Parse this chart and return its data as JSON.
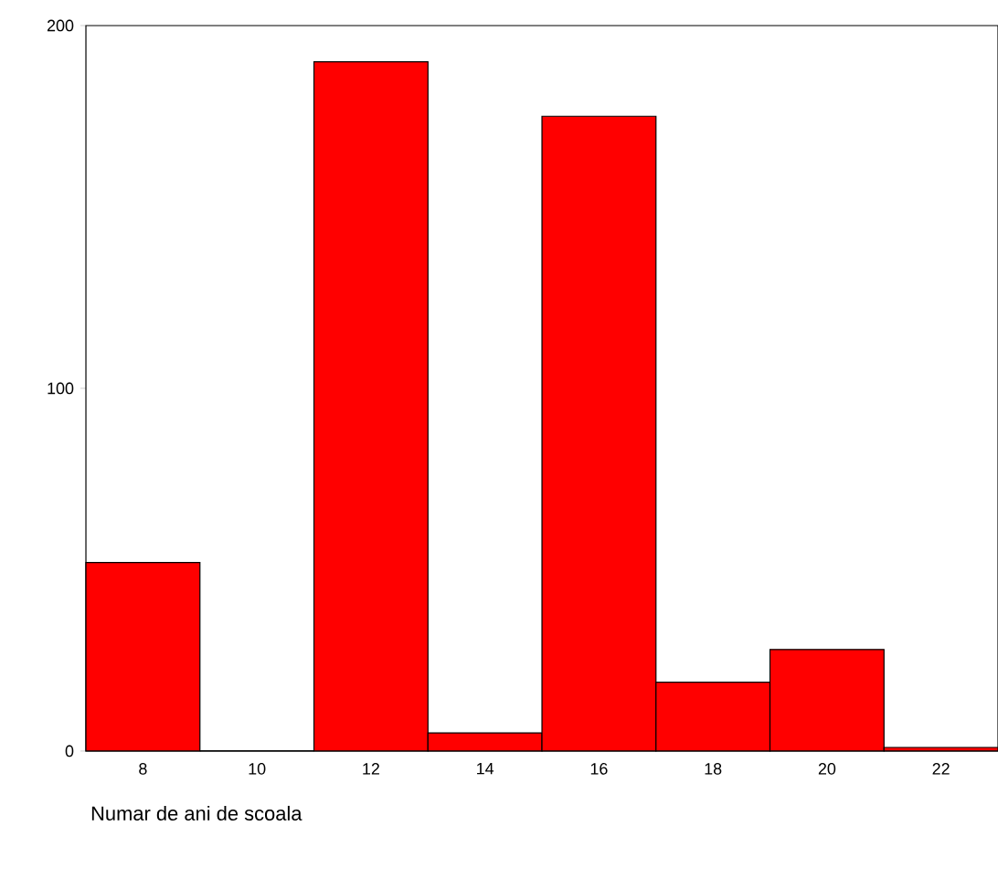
{
  "chart_data": {
    "type": "histogram",
    "xlabel": "Numar de ani de scoala",
    "bins": [
      7,
      9,
      11,
      13,
      15,
      17,
      19,
      21,
      23
    ],
    "values": [
      52,
      0,
      190,
      5,
      175,
      19,
      28,
      1
    ],
    "color": "#ff0000",
    "xlim": [
      7,
      23
    ],
    "ylim": [
      0,
      200
    ],
    "xticks": [
      8,
      10,
      12,
      14,
      16,
      18,
      20,
      22
    ],
    "yticks": [
      0,
      100,
      200
    ],
    "grid": false
  }
}
